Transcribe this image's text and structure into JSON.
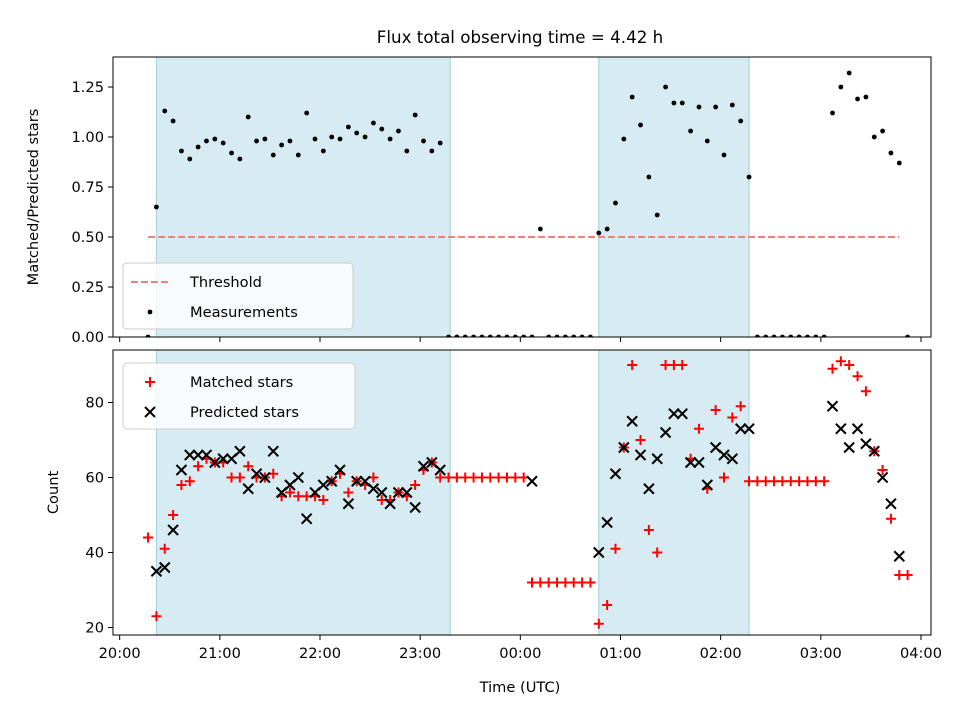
{
  "figure": {
    "title": "Flux total observing time = 4.42 h",
    "xlabel": "Time (UTC)"
  },
  "chart_data": [
    {
      "type": "scatter",
      "ylabel": "Matched/Predicted stars",
      "xlim": [
        "20:00",
        "04:00"
      ],
      "x_ticks": [
        "20:00",
        "21:00",
        "22:00",
        "23:00",
        "00:00",
        "01:00",
        "02:00",
        "03:00",
        "04:00"
      ],
      "ylim": [
        0,
        1.4
      ],
      "y_ticks": [
        "0.00",
        "0.25",
        "0.50",
        "0.75",
        "1.00",
        "1.25"
      ],
      "shaded_spans": [
        [
          "20:22",
          "23:18"
        ],
        [
          "00:47",
          "02:17"
        ]
      ],
      "legend": {
        "position": "lower-left",
        "entries": [
          "Threshold",
          "Measurements"
        ]
      },
      "series": [
        {
          "name": "Threshold",
          "style": "dashed-line",
          "color": "#f08080",
          "points": [
            [
              "20:17",
              0.5
            ],
            [
              "03:47",
              0.5
            ]
          ]
        },
        {
          "name": "Measurements",
          "style": "dot",
          "color": "#000000",
          "points": [
            [
              "20:17",
              0.0
            ],
            [
              "20:22",
              0.65
            ],
            [
              "20:27",
              1.13
            ],
            [
              "20:32",
              1.08
            ],
            [
              "20:37",
              0.93
            ],
            [
              "20:42",
              0.89
            ],
            [
              "20:47",
              0.95
            ],
            [
              "20:52",
              0.98
            ],
            [
              "20:57",
              0.99
            ],
            [
              "21:02",
              0.97
            ],
            [
              "21:07",
              0.92
            ],
            [
              "21:12",
              0.89
            ],
            [
              "21:17",
              1.1
            ],
            [
              "21:22",
              0.98
            ],
            [
              "21:27",
              0.99
            ],
            [
              "21:32",
              0.91
            ],
            [
              "21:37",
              0.96
            ],
            [
              "21:42",
              0.98
            ],
            [
              "21:47",
              0.91
            ],
            [
              "21:52",
              1.12
            ],
            [
              "21:57",
              0.99
            ],
            [
              "22:02",
              0.93
            ],
            [
              "22:07",
              1.0
            ],
            [
              "22:12",
              0.99
            ],
            [
              "22:17",
              1.05
            ],
            [
              "22:22",
              1.02
            ],
            [
              "22:27",
              1.0
            ],
            [
              "22:32",
              1.07
            ],
            [
              "22:37",
              1.04
            ],
            [
              "22:42",
              0.99
            ],
            [
              "22:47",
              1.03
            ],
            [
              "22:52",
              0.93
            ],
            [
              "22:57",
              1.11
            ],
            [
              "23:02",
              0.98
            ],
            [
              "23:07",
              0.93
            ],
            [
              "23:12",
              0.97
            ],
            [
              "23:17",
              0.0
            ],
            [
              "23:22",
              0.0
            ],
            [
              "23:27",
              0.0
            ],
            [
              "23:32",
              0.0
            ],
            [
              "23:37",
              0.0
            ],
            [
              "23:42",
              0.0
            ],
            [
              "23:47",
              0.0
            ],
            [
              "23:52",
              0.0
            ],
            [
              "23:57",
              0.0
            ],
            [
              "00:02",
              0.0
            ],
            [
              "00:07",
              0.0
            ],
            [
              "00:12",
              0.54
            ],
            [
              "00:17",
              0.0
            ],
            [
              "00:22",
              0.0
            ],
            [
              "00:27",
              0.0
            ],
            [
              "00:32",
              0.0
            ],
            [
              "00:37",
              0.0
            ],
            [
              "00:42",
              0.0
            ],
            [
              "00:47",
              0.52
            ],
            [
              "00:52",
              0.54
            ],
            [
              "00:57",
              0.67
            ],
            [
              "01:02",
              0.99
            ],
            [
              "01:07",
              1.2
            ],
            [
              "01:12",
              1.06
            ],
            [
              "01:17",
              0.8
            ],
            [
              "01:22",
              0.61
            ],
            [
              "01:27",
              1.25
            ],
            [
              "01:32",
              1.17
            ],
            [
              "01:37",
              1.17
            ],
            [
              "01:42",
              1.03
            ],
            [
              "01:47",
              1.15
            ],
            [
              "01:52",
              0.98
            ],
            [
              "01:57",
              1.15
            ],
            [
              "02:02",
              0.91
            ],
            [
              "02:07",
              1.16
            ],
            [
              "02:12",
              1.08
            ],
            [
              "02:17",
              0.8
            ],
            [
              "02:22",
              0.0
            ],
            [
              "02:27",
              0.0
            ],
            [
              "02:32",
              0.0
            ],
            [
              "02:37",
              0.0
            ],
            [
              "02:42",
              0.0
            ],
            [
              "02:47",
              0.0
            ],
            [
              "02:52",
              0.0
            ],
            [
              "02:57",
              0.0
            ],
            [
              "03:02",
              0.0
            ],
            [
              "03:07",
              1.12
            ],
            [
              "03:12",
              1.25
            ],
            [
              "03:17",
              1.32
            ],
            [
              "03:22",
              1.19
            ],
            [
              "03:27",
              1.2
            ],
            [
              "03:32",
              1.0
            ],
            [
              "03:37",
              1.03
            ],
            [
              "03:42",
              0.92
            ],
            [
              "03:47",
              0.87
            ],
            [
              "03:52",
              0.0
            ]
          ]
        }
      ]
    },
    {
      "type": "scatter",
      "ylabel": "Count",
      "xlim": [
        "20:00",
        "04:00"
      ],
      "x_ticks": [
        "20:00",
        "21:00",
        "22:00",
        "23:00",
        "00:00",
        "01:00",
        "02:00",
        "03:00",
        "04:00"
      ],
      "ylim": [
        18,
        94
      ],
      "y_ticks": [
        "20",
        "40",
        "60",
        "80"
      ],
      "shaded_spans": [
        [
          "20:22",
          "23:18"
        ],
        [
          "00:47",
          "02:17"
        ]
      ],
      "legend": {
        "position": "upper-left",
        "entries": [
          "Matched stars",
          "Predicted stars"
        ]
      },
      "series": [
        {
          "name": "Matched stars",
          "style": "plus",
          "color": "#ff0000",
          "points": [
            [
              "20:17",
              44
            ],
            [
              "20:22",
              23
            ],
            [
              "20:27",
              41
            ],
            [
              "20:32",
              50
            ],
            [
              "20:37",
              58
            ],
            [
              "20:42",
              59
            ],
            [
              "20:47",
              63
            ],
            [
              "20:52",
              65
            ],
            [
              "20:57",
              64
            ],
            [
              "21:02",
              64
            ],
            [
              "21:07",
              60
            ],
            [
              "21:12",
              60
            ],
            [
              "21:17",
              63
            ],
            [
              "21:22",
              60
            ],
            [
              "21:27",
              60
            ],
            [
              "21:32",
              61
            ],
            [
              "21:37",
              55
            ],
            [
              "21:42",
              56
            ],
            [
              "21:47",
              55
            ],
            [
              "21:52",
              55
            ],
            [
              "21:57",
              55
            ],
            [
              "22:02",
              54
            ],
            [
              "22:07",
              59
            ],
            [
              "22:12",
              61
            ],
            [
              "22:17",
              56
            ],
            [
              "22:22",
              59
            ],
            [
              "22:27",
              58
            ],
            [
              "22:32",
              60
            ],
            [
              "22:37",
              54
            ],
            [
              "22:42",
              54
            ],
            [
              "22:47",
              56
            ],
            [
              "22:52",
              55
            ],
            [
              "22:57",
              58
            ],
            [
              "23:02",
              62
            ],
            [
              "23:07",
              64
            ],
            [
              "23:12",
              60
            ],
            [
              "23:17",
              60
            ],
            [
              "23:22",
              60
            ],
            [
              "23:27",
              60
            ],
            [
              "23:32",
              60
            ],
            [
              "23:37",
              60
            ],
            [
              "23:42",
              60
            ],
            [
              "23:47",
              60
            ],
            [
              "23:52",
              60
            ],
            [
              "23:57",
              60
            ],
            [
              "00:02",
              60
            ],
            [
              "00:07",
              32
            ],
            [
              "00:12",
              32
            ],
            [
              "00:17",
              32
            ],
            [
              "00:22",
              32
            ],
            [
              "00:27",
              32
            ],
            [
              "00:32",
              32
            ],
            [
              "00:37",
              32
            ],
            [
              "00:42",
              32
            ],
            [
              "00:47",
              21
            ],
            [
              "00:52",
              26
            ],
            [
              "00:57",
              41
            ],
            [
              "01:02",
              68
            ],
            [
              "01:07",
              90
            ],
            [
              "01:12",
              70
            ],
            [
              "01:17",
              46
            ],
            [
              "01:22",
              40
            ],
            [
              "01:27",
              90
            ],
            [
              "01:32",
              90
            ],
            [
              "01:37",
              90
            ],
            [
              "01:42",
              65
            ],
            [
              "01:47",
              73
            ],
            [
              "01:52",
              57
            ],
            [
              "01:57",
              78
            ],
            [
              "02:02",
              60
            ],
            [
              "02:07",
              76
            ],
            [
              "02:12",
              79
            ],
            [
              "02:17",
              59
            ],
            [
              "02:22",
              59
            ],
            [
              "02:27",
              59
            ],
            [
              "02:32",
              59
            ],
            [
              "02:37",
              59
            ],
            [
              "02:42",
              59
            ],
            [
              "02:47",
              59
            ],
            [
              "02:52",
              59
            ],
            [
              "02:57",
              59
            ],
            [
              "03:02",
              59
            ],
            [
              "03:07",
              89
            ],
            [
              "03:12",
              91
            ],
            [
              "03:17",
              90
            ],
            [
              "03:22",
              87
            ],
            [
              "03:27",
              83
            ],
            [
              "03:32",
              67
            ],
            [
              "03:37",
              62
            ],
            [
              "03:42",
              49
            ],
            [
              "03:47",
              34
            ],
            [
              "03:52",
              34
            ]
          ]
        },
        {
          "name": "Predicted stars",
          "style": "x",
          "color": "#000000",
          "points": [
            [
              "20:22",
              35
            ],
            [
              "20:27",
              36
            ],
            [
              "20:32",
              46
            ],
            [
              "20:37",
              62
            ],
            [
              "20:42",
              66
            ],
            [
              "20:47",
              66
            ],
            [
              "20:52",
              66
            ],
            [
              "20:57",
              64
            ],
            [
              "21:02",
              65
            ],
            [
              "21:07",
              65
            ],
            [
              "21:12",
              67
            ],
            [
              "21:17",
              57
            ],
            [
              "21:22",
              61
            ],
            [
              "21:27",
              60
            ],
            [
              "21:32",
              67
            ],
            [
              "21:37",
              56
            ],
            [
              "21:42",
              58
            ],
            [
              "21:47",
              60
            ],
            [
              "21:52",
              49
            ],
            [
              "21:57",
              56
            ],
            [
              "22:02",
              58
            ],
            [
              "22:07",
              59
            ],
            [
              "22:12",
              62
            ],
            [
              "22:17",
              53
            ],
            [
              "22:22",
              59
            ],
            [
              "22:27",
              59
            ],
            [
              "22:32",
              57
            ],
            [
              "22:37",
              56
            ],
            [
              "22:42",
              53
            ],
            [
              "22:47",
              56
            ],
            [
              "22:52",
              56
            ],
            [
              "22:57",
              52
            ],
            [
              "23:02",
              63
            ],
            [
              "23:07",
              64
            ],
            [
              "23:12",
              62
            ],
            [
              "00:07",
              59
            ],
            [
              "00:47",
              40
            ],
            [
              "00:52",
              48
            ],
            [
              "00:57",
              61
            ],
            [
              "01:02",
              68
            ],
            [
              "01:07",
              75
            ],
            [
              "01:12",
              66
            ],
            [
              "01:17",
              57
            ],
            [
              "01:22",
              65
            ],
            [
              "01:27",
              72
            ],
            [
              "01:32",
              77
            ],
            [
              "01:37",
              77
            ],
            [
              "01:42",
              64
            ],
            [
              "01:47",
              64
            ],
            [
              "01:52",
              58
            ],
            [
              "01:57",
              68
            ],
            [
              "02:02",
              66
            ],
            [
              "02:07",
              65
            ],
            [
              "02:12",
              73
            ],
            [
              "02:17",
              73
            ],
            [
              "03:07",
              79
            ],
            [
              "03:12",
              73
            ],
            [
              "03:17",
              68
            ],
            [
              "03:22",
              73
            ],
            [
              "03:27",
              69
            ],
            [
              "03:32",
              67
            ],
            [
              "03:37",
              60
            ],
            [
              "03:42",
              53
            ],
            [
              "03:47",
              39
            ]
          ]
        }
      ]
    }
  ]
}
